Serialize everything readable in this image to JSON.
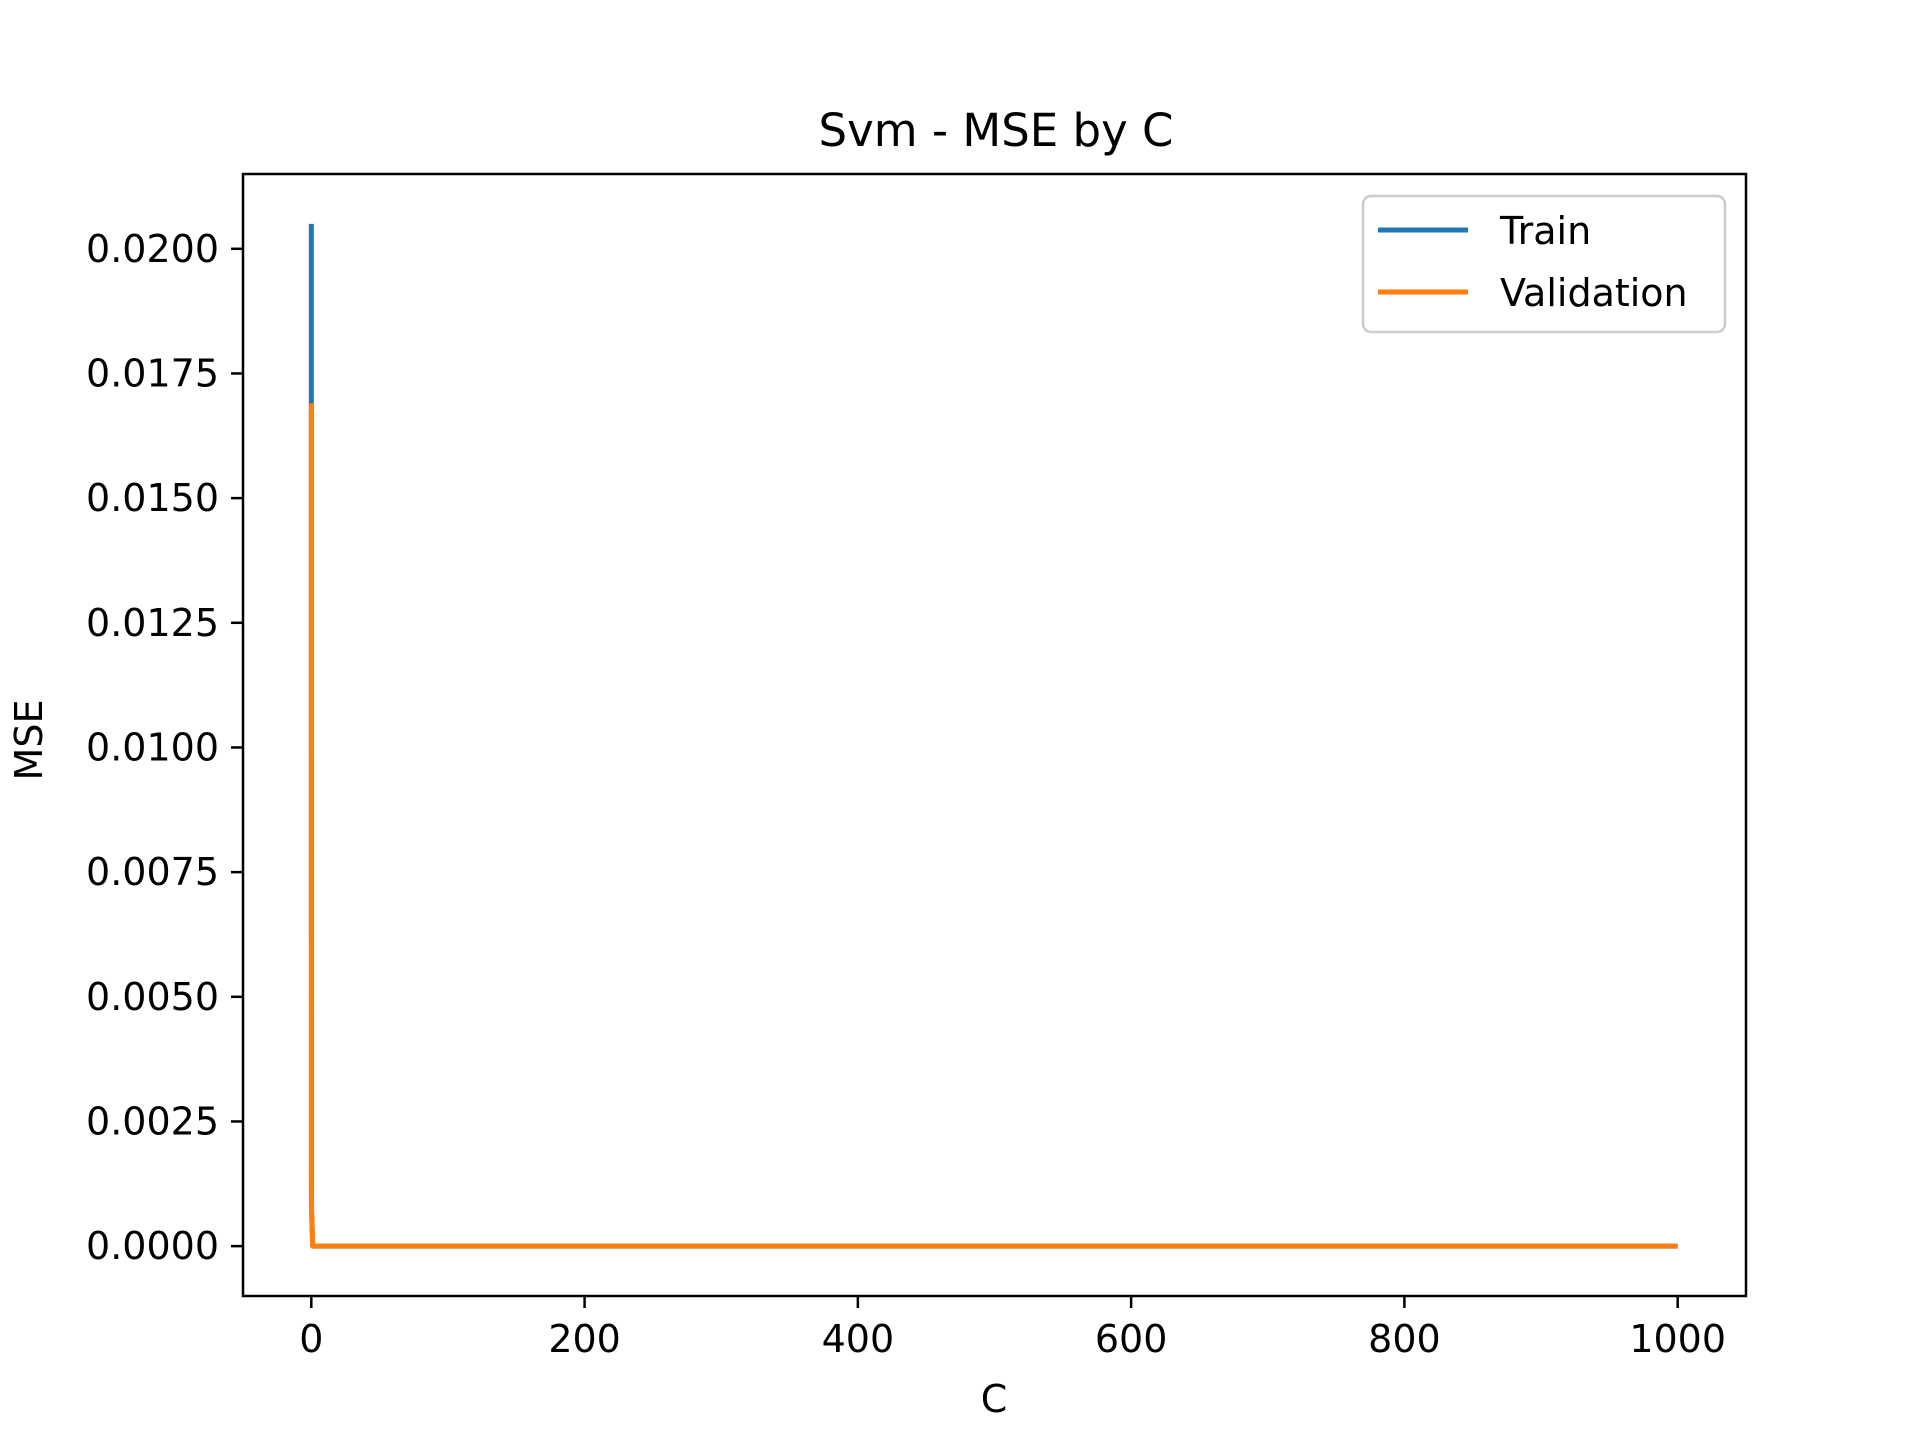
{
  "chart_data": {
    "type": "line",
    "title": "Svm - MSE by C",
    "xlabel": "C",
    "ylabel": "MSE",
    "xlim": [
      -50,
      1050
    ],
    "ylim": [
      -0.001,
      0.0215
    ],
    "xticks": [
      0,
      200,
      400,
      600,
      800,
      1000
    ],
    "yticks": [
      0.0,
      0.0025,
      0.005,
      0.0075,
      0.01,
      0.0125,
      0.015,
      0.0175,
      0.02
    ],
    "x_tick_labels": [
      "0",
      "200",
      "400",
      "600",
      "800",
      "1000"
    ],
    "y_tick_labels": [
      "0.0000",
      "0.0025",
      "0.0050",
      "0.0075",
      "0.0100",
      "0.0125",
      "0.0150",
      "0.0175",
      "0.0200"
    ],
    "grid": false,
    "legend_position": "top-right",
    "series": [
      {
        "name": "Train",
        "color": "#1f77b4",
        "x": [
          0.001,
          0.01,
          0.1,
          1,
          10,
          100,
          1000
        ],
        "y": [
          0.0205,
          0.0169,
          0.0008,
          0.0,
          0.0,
          0.0,
          0.0
        ]
      },
      {
        "name": "Validation",
        "color": "#ff7f0e",
        "x": [
          0.001,
          0.01,
          0.1,
          1,
          10,
          100,
          1000
        ],
        "y": [
          0.0169,
          0.0014,
          0.0009,
          0.0,
          0.0,
          0.0,
          0.0
        ]
      }
    ]
  }
}
